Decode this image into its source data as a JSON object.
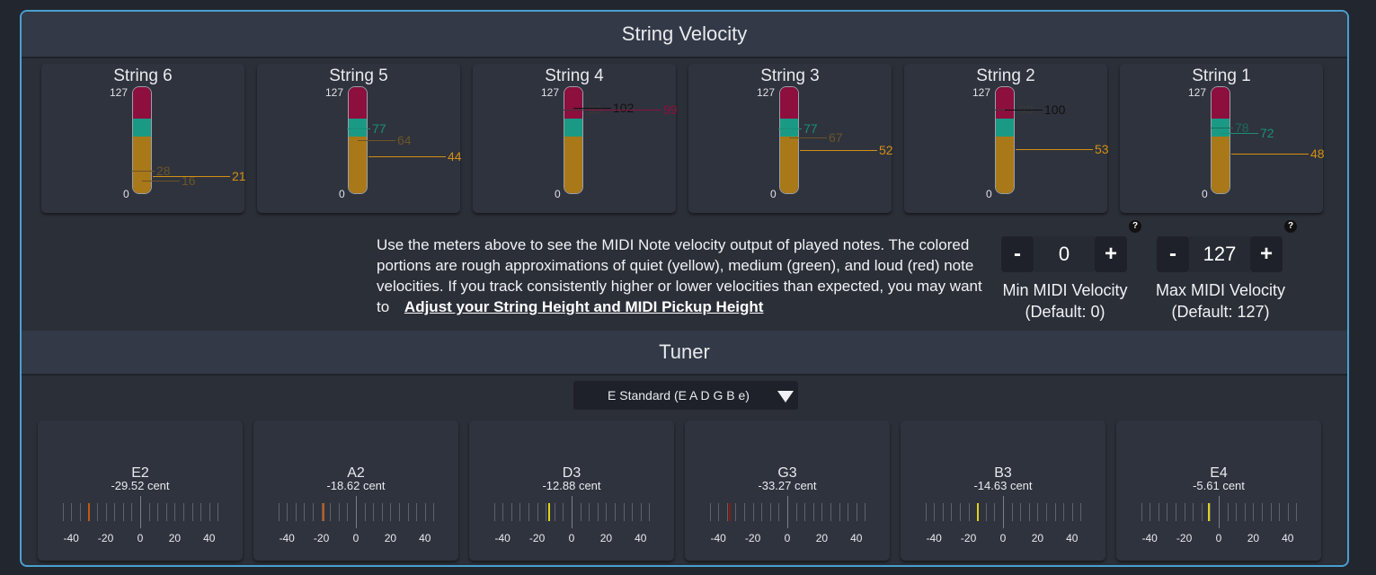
{
  "velocity": {
    "title": "String Velocity",
    "strings": [
      {
        "name": "String 6",
        "max": "127",
        "min": "0",
        "marks": [
          {
            "v": 28,
            "c": "#6b5428"
          },
          {
            "v": 16,
            "c": "#6b5428"
          },
          {
            "v": 21,
            "c": "#d38f14"
          }
        ]
      },
      {
        "name": "String 5",
        "max": "127",
        "min": "0",
        "marks": [
          {
            "v": 77,
            "c": "#1a8f7a"
          },
          {
            "v": 64,
            "c": "#6b5428"
          },
          {
            "v": 44,
            "c": "#d38f14"
          }
        ]
      },
      {
        "name": "String 4",
        "max": "127",
        "min": "0",
        "marks": [
          {
            "v": 99,
            "c": "#3a3a3a"
          },
          {
            "v": 102,
            "c": "#111111"
          },
          {
            "v": 99,
            "c": "#8c0f3e"
          }
        ]
      },
      {
        "name": "String 3",
        "max": "127",
        "min": "0",
        "marks": [
          {
            "v": 77,
            "c": "#1a8f7a"
          },
          {
            "v": 67,
            "c": "#6b5428"
          },
          {
            "v": 52,
            "c": "#d38f14"
          }
        ]
      },
      {
        "name": "String 2",
        "max": "127",
        "min": "0",
        "marks": [
          {
            "v": 99,
            "c": "#3a3a3a"
          },
          {
            "v": 100,
            "c": "#111111"
          },
          {
            "v": 53,
            "c": "#d38f14"
          }
        ]
      },
      {
        "name": "String 1",
        "max": "127",
        "min": "0",
        "marks": [
          {
            "v": 78,
            "c": "#1a6b5c"
          },
          {
            "v": 72,
            "c": "#1a8f7a"
          },
          {
            "v": 48,
            "c": "#d38f14"
          }
        ]
      }
    ],
    "help_text": "Use the meters above to see the MIDI Note velocity output of played notes. The colored portions are rough approximations of quiet (yellow), medium (green), and loud (red) note velocities. If you track consistently higher or lower velocities than expected, you may want to",
    "help_link": "Adjust your String Height and MIDI Pickup Height",
    "help_icon": "?",
    "min_velocity": {
      "minus": "-",
      "value": "0",
      "plus": "+",
      "label": "Min MIDI Velocity",
      "default": "(Default: 0)"
    },
    "max_velocity": {
      "minus": "-",
      "value": "127",
      "plus": "+",
      "label": "Max MIDI Velocity",
      "default": "(Default: 127)"
    }
  },
  "tuner": {
    "title": "Tuner",
    "tuning": "E Standard (E A D G B e)",
    "scale_labels": [
      "-40",
      "-20",
      "0",
      "20",
      "40"
    ],
    "strings": [
      {
        "note": "E2",
        "cent": "-29.52 cent",
        "offset": -29.52,
        "color": "#c05a12"
      },
      {
        "note": "A2",
        "cent": "-18.62 cent",
        "offset": -18.62,
        "color": "#c05a12"
      },
      {
        "note": "D3",
        "cent": "-12.88 cent",
        "offset": -12.88,
        "color": "#e0d21a"
      },
      {
        "note": "G3",
        "cent": "-33.27 cent",
        "offset": -33.27,
        "color": "#8a1a10"
      },
      {
        "note": "B3",
        "cent": "-14.63 cent",
        "offset": -14.63,
        "color": "#e0d21a"
      },
      {
        "note": "E4",
        "cent": "-5.61 cent",
        "offset": -5.61,
        "color": "#e0d21a"
      }
    ]
  }
}
